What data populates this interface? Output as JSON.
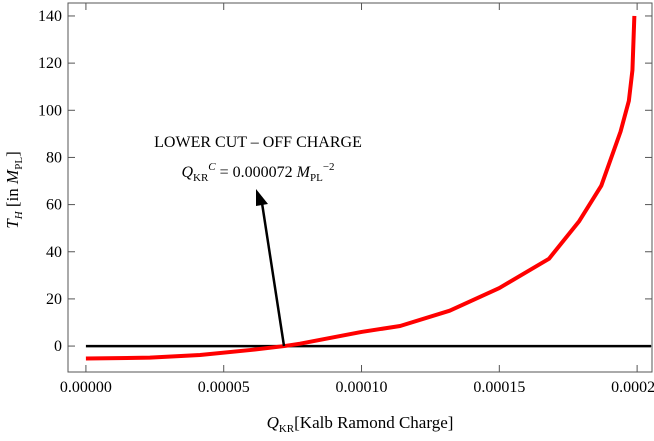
{
  "chart_data": {
    "type": "line",
    "x_label": {
      "q": "Q",
      "sub": "KR",
      "rest": "[Kalb Ramond Charge]"
    },
    "y_label": {
      "t": "T",
      "sub": "H",
      "rest": " [in ",
      "m": "M",
      "msub": "PL",
      "end": "]"
    },
    "annotation": {
      "line1": "LOWER CUT – OFF CHARGE",
      "q": "Q",
      "qsub": "KR",
      "qsup": "C",
      "eq": " = 0.000072 ",
      "m": "M",
      "msub": "PL",
      "msup": "−2"
    },
    "hline": 0,
    "x": [
      0,
      2.32e-05,
      4.14e-05,
      5.95e-05,
      7.2e-05,
      7.77e-05,
      0.0001,
      0.000114,
      0.000132,
      0.00015,
      0.000168,
      0.000179,
      0.000187,
      0.000194,
      0.000197,
      0.0001983,
      0.000199
    ],
    "series": [
      {
        "name": "T_H",
        "color": "#ff0000",
        "values": [
          -5.3,
          -4.9,
          -3.8,
          -1.7,
          0,
          1,
          6,
          8.5,
          15,
          24.6,
          37,
          53,
          68,
          91,
          104,
          117,
          140
        ]
      }
    ],
    "xlim": [
      -6.5e-06,
      0.0002054
    ],
    "ylim": [
      -11,
      145.5
    ],
    "xticks": [
      {
        "value": 0,
        "label": "0.00000"
      },
      {
        "value": 5e-05,
        "label": "0.00005"
      },
      {
        "value": 0.0001,
        "label": "0.00010"
      },
      {
        "value": 0.00015,
        "label": "0.00015"
      },
      {
        "value": 0.0002,
        "label": "0.00020"
      }
    ],
    "yticks": [
      0,
      20,
      40,
      60,
      80,
      100,
      120,
      140
    ]
  }
}
